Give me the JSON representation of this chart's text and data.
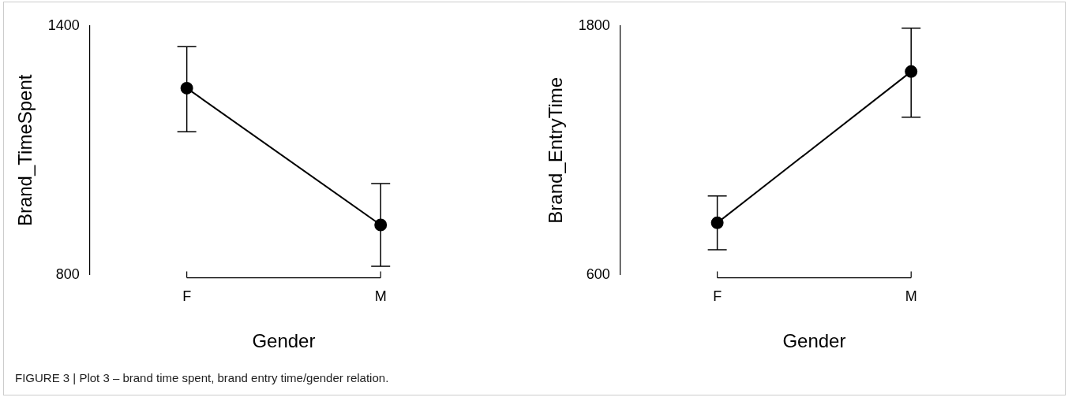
{
  "chart_data": [
    {
      "type": "line",
      "xlabel": "Gender",
      "ylabel": "Brand_TimeSpent",
      "categories": [
        "F",
        "M"
      ],
      "series": [
        {
          "color": "#000000",
          "values": [
            1250,
            920
          ],
          "errors": [
            [
              1145,
              1350
            ],
            [
              820,
              1020
            ]
          ]
        }
      ],
      "ylim": [
        800,
        1400
      ],
      "yticks": [
        800,
        1400
      ],
      "grid": false,
      "legend": false,
      "marker": "circle",
      "line_style": "solid",
      "annotations": [
        "FIGURE 3 | Plot 3 – brand time spent, brand entry time/gender relation."
      ]
    },
    {
      "type": "line",
      "xlabel": "Gender",
      "ylabel": "Brand_EntryTime",
      "categories": [
        "F",
        "M"
      ],
      "series": [
        {
          "color": "#000000",
          "values": [
            850,
            1580
          ],
          "errors": [
            [
              720,
              980
            ],
            [
              1360,
              1790
            ]
          ]
        }
      ],
      "ylim": [
        600,
        1800
      ],
      "yticks": [
        600,
        1800
      ],
      "grid": false,
      "legend": false,
      "marker": "circle",
      "line_style": "solid"
    }
  ]
}
